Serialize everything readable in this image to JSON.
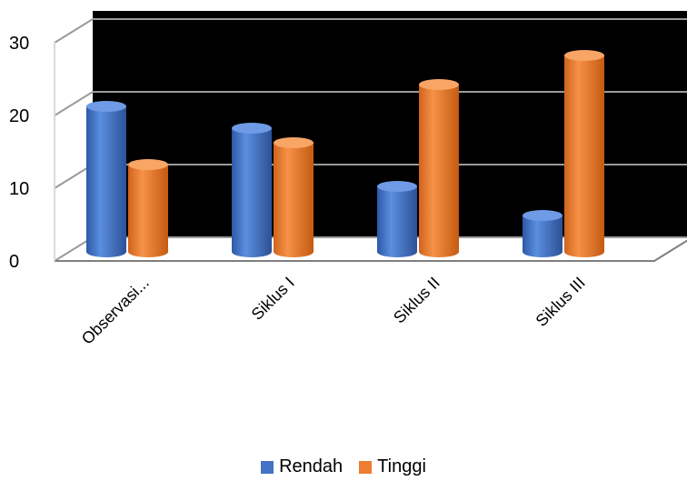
{
  "chart_data": {
    "type": "bar",
    "style": "3d-cylinder",
    "categories": [
      "Observasi...",
      "Siklus I",
      "Siklus II",
      "Siklus III"
    ],
    "series": [
      {
        "name": "Rendah",
        "values": [
          20,
          17,
          9,
          5
        ],
        "color": "#4472C4"
      },
      {
        "name": "Tinggi",
        "values": [
          12,
          15,
          23,
          27
        ],
        "color": "#ED7D31"
      }
    ],
    "yticks": [
      "0",
      "10",
      "20",
      "30"
    ],
    "ylim": [
      0,
      30
    ],
    "grid": true,
    "legend_position": "bottom-center",
    "back_wall_color": "#000000",
    "gridline_color": "#9a9a9a"
  }
}
